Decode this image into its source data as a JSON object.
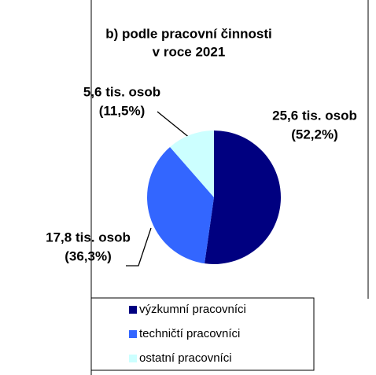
{
  "chart_data": {
    "type": "pie",
    "title": "b) podle pracovní činnosti",
    "subtitle": "v roce 2021",
    "categories": [
      "výzkumní pracovníci",
      "techničtí pracovníci",
      "ostatní pracovníci"
    ],
    "values": [
      25.6,
      17.8,
      5.6
    ],
    "value_labels": [
      [
        "25,6 tis. osob",
        "(52,2%)"
      ],
      [
        "17,8 tis. osob",
        "(36,3%)"
      ],
      [
        "5,6 tis. osob",
        "(11,5%)"
      ]
    ],
    "colors": [
      "#000080",
      "#3366ff",
      "#ccffff"
    ],
    "legend": "bottom"
  }
}
